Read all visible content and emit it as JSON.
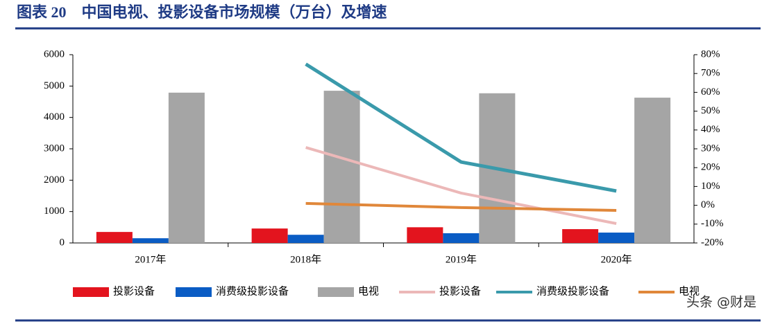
{
  "chart_data": {
    "type": "bar",
    "title": "图表 20　中国电视、投影设备市场规模（万台）及增速",
    "categories": [
      "2017年",
      "2018年",
      "2019年",
      "2020年"
    ],
    "series": [
      {
        "name": "投影设备",
        "type": "bar",
        "color": "#e3141e",
        "values": [
          350,
          460,
          500,
          440
        ]
      },
      {
        "name": "消费级投影设备",
        "type": "bar",
        "color": "#0a5cc4",
        "values": [
          150,
          260,
          310,
          330
        ]
      },
      {
        "name": "电视",
        "type": "bar",
        "color": "#a5a5a5",
        "values": [
          4790,
          4850,
          4770,
          4630
        ]
      },
      {
        "name": "投影设备",
        "type": "line",
        "axis": "y2",
        "color": "#ecb8b8",
        "values": [
          null,
          30.7,
          6.5,
          -9.7
        ]
      },
      {
        "name": "消费级投影设备",
        "type": "line",
        "axis": "y2",
        "color": "#3a9aab",
        "values": [
          null,
          75,
          23,
          7.6
        ]
      },
      {
        "name": "电视",
        "type": "line",
        "axis": "y2",
        "color": "#e0873a",
        "values": [
          null,
          1,
          -1.2,
          -2.7
        ]
      }
    ],
    "ylim": [
      0,
      6000
    ],
    "yticks": [
      0,
      1000,
      2000,
      3000,
      4000,
      5000,
      6000
    ],
    "y2lim": [
      -20,
      80
    ],
    "y2ticks": [
      {
        "value": -20,
        "label": "-20%"
      },
      {
        "value": -10,
        "label": "-10%"
      },
      {
        "value": 0,
        "label": "0%"
      },
      {
        "value": 10,
        "label": "10%"
      },
      {
        "value": 20,
        "label": "20%"
      },
      {
        "value": 30,
        "label": "30%"
      },
      {
        "value": 40,
        "label": "40%"
      },
      {
        "value": 50,
        "label": "50%"
      },
      {
        "value": 60,
        "label": "60%"
      },
      {
        "value": 70,
        "label": "70%"
      },
      {
        "value": 80,
        "label": "80%"
      }
    ],
    "legend": "bottom"
  },
  "watermark": "头条 @财是"
}
